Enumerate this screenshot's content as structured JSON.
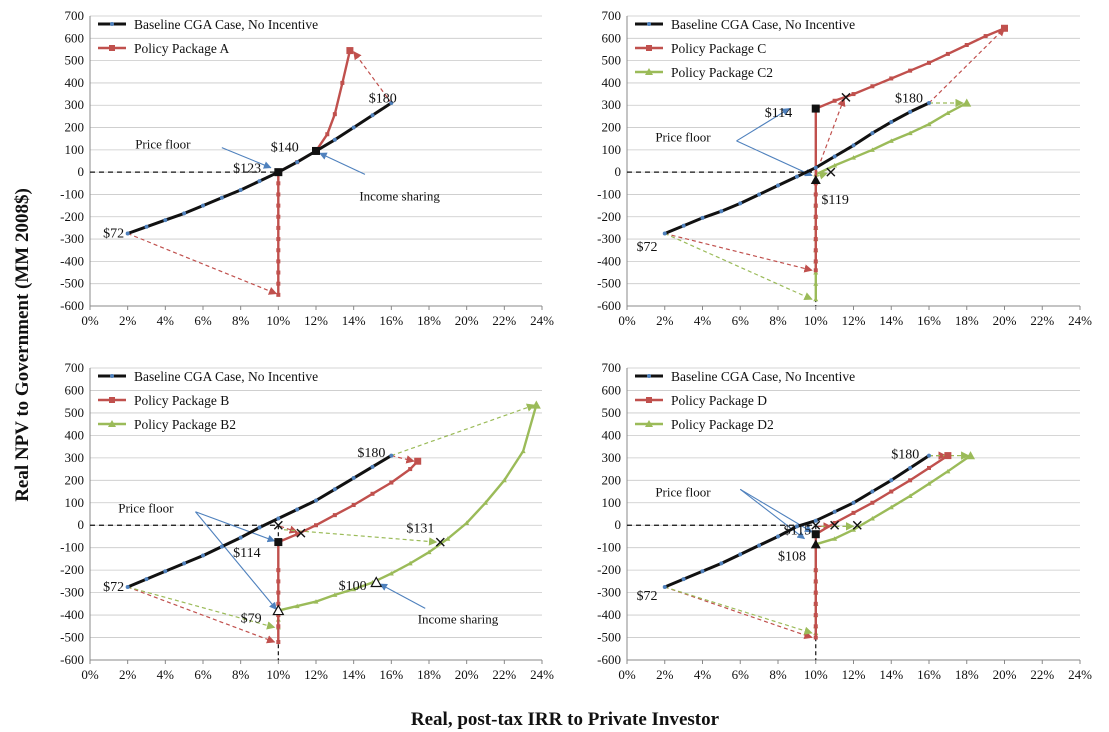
{
  "figure": {
    "ylabel": "Real NPV to Government (MM 2008$)",
    "xlabel": "Real, post-tax IRR to Private Investor"
  },
  "colors": {
    "baseline": "#111111",
    "baseline_dot": "#4f81bd",
    "policy": "#c0504d",
    "policy2": "#9bbb59",
    "arrow_blue": "#4f81bd"
  },
  "chart_data": [
    {
      "type": "line",
      "xlim": [
        0,
        24
      ],
      "ylim": [
        -600,
        700
      ],
      "xstep": 2,
      "ystep": 100,
      "xticks": [
        "0%",
        "2%",
        "4%",
        "6%",
        "8%",
        "10%",
        "12%",
        "14%",
        "16%",
        "18%",
        "20%",
        "22%",
        "24%"
      ],
      "yticks": [
        "-600",
        "-500",
        "-400",
        "-300",
        "-200",
        "-100",
        "0",
        "100",
        "200",
        "300",
        "400",
        "500",
        "600",
        "700"
      ],
      "series": [
        {
          "name": "Baseline CGA Case, No Incentive",
          "kind": "baseline",
          "x": [
            2,
            3,
            4,
            5,
            6,
            7,
            8,
            9,
            10,
            11,
            12,
            13,
            14,
            15,
            16
          ],
          "y": [
            -275,
            -245,
            -215,
            -185,
            -150,
            -115,
            -80,
            -40,
            0,
            45,
            95,
            145,
            200,
            255,
            310
          ]
        },
        {
          "name": "Policy Package A",
          "kind": "policy",
          "x": [
            10,
            10,
            10,
            10,
            10,
            10,
            10,
            10,
            10,
            10,
            10,
            10,
            11,
            12,
            12.6,
            13,
            13.4,
            13.8
          ],
          "y": [
            -550,
            -500,
            -450,
            -400,
            -350,
            -300,
            -250,
            -200,
            -150,
            -100,
            -50,
            0,
            45,
            95,
            170,
            260,
            400,
            545
          ]
        }
      ],
      "points": [
        {
          "x": 10,
          "y": 0,
          "marker": "square-black"
        },
        {
          "x": 12,
          "y": 95,
          "marker": "square-black"
        }
      ],
      "labels": [
        {
          "text": "$72",
          "x": 0.7,
          "y": -270
        },
        {
          "text": "$123",
          "x": 7.6,
          "y": 20
        },
        {
          "text": "$140",
          "x": 9.6,
          "y": 115
        },
        {
          "text": "$180",
          "x": 14.8,
          "y": 335
        }
      ],
      "arrows": [
        {
          "from": [
            2,
            -275
          ],
          "to": [
            9.9,
            -545
          ],
          "kind": "policy"
        },
        {
          "from": [
            16,
            310
          ],
          "to": [
            14,
            540
          ],
          "kind": "policy"
        },
        {
          "from": [
            7,
            110
          ],
          "to": [
            9.6,
            20
          ],
          "kind": "blue"
        },
        {
          "from": [
            14.6,
            -10
          ],
          "to": [
            12.2,
            85
          ],
          "kind": "blue"
        }
      ],
      "annotations": [
        {
          "text": "Price floor",
          "x": 2.4,
          "y": 125
        },
        {
          "text": "Income sharing",
          "x": 14.3,
          "y": -110
        }
      ]
    },
    {
      "type": "line",
      "xlim": [
        0,
        24
      ],
      "ylim": [
        -600,
        700
      ],
      "xstep": 2,
      "ystep": 100,
      "xticks": [
        "0%",
        "2%",
        "4%",
        "6%",
        "8%",
        "10%",
        "12%",
        "14%",
        "16%",
        "18%",
        "20%",
        "22%",
        "24%"
      ],
      "yticks": [
        "-600",
        "-500",
        "-400",
        "-300",
        "-200",
        "-100",
        "0",
        "100",
        "200",
        "300",
        "400",
        "500",
        "600",
        "700"
      ],
      "series": [
        {
          "name": "Baseline CGA Case, No Incentive",
          "kind": "baseline",
          "x": [
            2,
            3,
            4,
            5,
            6,
            7,
            8,
            9,
            10,
            11,
            12,
            13,
            14,
            15,
            16
          ],
          "y": [
            -275,
            -240,
            -205,
            -175,
            -140,
            -100,
            -60,
            -20,
            20,
            70,
            120,
            175,
            225,
            270,
            310
          ]
        },
        {
          "name": "Policy Package C",
          "kind": "policy",
          "x": [
            10,
            10,
            10,
            10,
            10,
            10,
            10,
            10,
            10,
            10,
            11,
            12,
            13,
            14,
            15,
            16,
            17,
            18,
            19,
            20
          ],
          "y": [
            -440,
            -400,
            -350,
            -300,
            -250,
            -200,
            -150,
            -100,
            -50,
            285,
            320,
            350,
            385,
            420,
            455,
            490,
            530,
            570,
            610,
            645
          ]
        },
        {
          "name": "Policy Package C2",
          "kind": "policy2",
          "x": [
            10,
            10,
            10,
            10,
            10,
            10,
            10,
            10,
            10,
            10,
            11,
            12,
            13,
            14,
            15,
            16,
            17,
            18
          ],
          "y": [
            -570,
            -500,
            -450,
            -400,
            -350,
            -300,
            -250,
            -200,
            -150,
            -10,
            30,
            65,
            100,
            140,
            175,
            215,
            265,
            310
          ]
        }
      ],
      "points": [
        {
          "x": 10,
          "y": 285,
          "marker": "square-black"
        },
        {
          "x": 10,
          "y": -35,
          "marker": "triangle-black"
        },
        {
          "x": 11.6,
          "y": 335,
          "marker": "cross"
        },
        {
          "x": 10.8,
          "y": 0,
          "marker": "cross"
        }
      ],
      "labels": [
        {
          "text": "$72",
          "x": 0.5,
          "y": -330
        },
        {
          "text": "$114",
          "x": 7.3,
          "y": 270
        },
        {
          "text": "$119",
          "x": 10.3,
          "y": -120
        },
        {
          "text": "$180",
          "x": 14.2,
          "y": 335
        }
      ],
      "arrows": [
        {
          "from": [
            2,
            -275
          ],
          "to": [
            9.8,
            -440
          ],
          "kind": "policy"
        },
        {
          "from": [
            2,
            -275
          ],
          "to": [
            9.8,
            -570
          ],
          "kind": "policy2"
        },
        {
          "from": [
            16,
            310
          ],
          "to": [
            20,
            645
          ],
          "kind": "policy"
        },
        {
          "from": [
            16,
            310
          ],
          "to": [
            17.8,
            310
          ],
          "kind": "policy2"
        },
        {
          "from": [
            10,
            -10
          ],
          "to": [
            11.5,
            330
          ],
          "kind": "policy"
        },
        {
          "from": [
            10,
            -20
          ],
          "to": [
            10.6,
            -5
          ],
          "kind": "policy2"
        },
        {
          "from": [
            5.8,
            140
          ],
          "to": [
            8.6,
            285
          ],
          "kind": "blue"
        },
        {
          "from": [
            5.8,
            140
          ],
          "to": [
            9.8,
            -15
          ],
          "kind": "blue"
        }
      ],
      "annotations": [
        {
          "text": "Price floor",
          "x": 1.5,
          "y": 155
        }
      ]
    },
    {
      "type": "line",
      "xlim": [
        0,
        24
      ],
      "ylim": [
        -600,
        700
      ],
      "xstep": 2,
      "ystep": 100,
      "xticks": [
        "0%",
        "2%",
        "4%",
        "6%",
        "8%",
        "10%",
        "12%",
        "14%",
        "16%",
        "18%",
        "20%",
        "22%",
        "24%"
      ],
      "yticks": [
        "-600",
        "-500",
        "-400",
        "-300",
        "-200",
        "-100",
        "0",
        "100",
        "200",
        "300",
        "400",
        "500",
        "600",
        "700"
      ],
      "series": [
        {
          "name": "Baseline CGA Case, No Incentive",
          "kind": "baseline",
          "x": [
            2,
            3,
            4,
            5,
            6,
            7,
            8,
            9,
            10,
            11,
            12,
            13,
            14,
            15,
            16
          ],
          "y": [
            -275,
            -240,
            -205,
            -170,
            -135,
            -95,
            -55,
            -10,
            30,
            70,
            110,
            160,
            210,
            260,
            310
          ]
        },
        {
          "name": "Policy Package B",
          "kind": "policy",
          "x": [
            10,
            10,
            10,
            10,
            10,
            10,
            10,
            10,
            11,
            12,
            13,
            14,
            15,
            16,
            17,
            17.4
          ],
          "y": [
            -520,
            -450,
            -400,
            -350,
            -300,
            -250,
            -200,
            -75,
            -40,
            0,
            45,
            90,
            140,
            190,
            250,
            285
          ]
        },
        {
          "name": "Policy Package B2",
          "kind": "policy2",
          "x": [
            10,
            10,
            10,
            11,
            12,
            13,
            14,
            15,
            16,
            17,
            18,
            19,
            20,
            21,
            22,
            23,
            23.7
          ],
          "y": [
            -455,
            -420,
            -380,
            -360,
            -340,
            -310,
            -285,
            -255,
            -215,
            -170,
            -120,
            -60,
            10,
            100,
            200,
            330,
            535
          ]
        }
      ],
      "points": [
        {
          "x": 10,
          "y": 0,
          "marker": "cross"
        },
        {
          "x": 10,
          "y": -75,
          "marker": "square-black"
        },
        {
          "x": 11.2,
          "y": -35,
          "marker": "cross"
        },
        {
          "x": 10,
          "y": -380,
          "marker": "triangle-open"
        },
        {
          "x": 15.2,
          "y": -255,
          "marker": "triangle-open"
        },
        {
          "x": 18.6,
          "y": -75,
          "marker": "cross"
        }
      ],
      "labels": [
        {
          "text": "$72",
          "x": 0.7,
          "y": -270
        },
        {
          "text": "$114",
          "x": 7.6,
          "y": -120
        },
        {
          "text": "$79",
          "x": 8.0,
          "y": -410
        },
        {
          "text": "$100",
          "x": 13.2,
          "y": -265
        },
        {
          "text": "$131",
          "x": 16.8,
          "y": -10
        },
        {
          "text": "$180",
          "x": 14.2,
          "y": 325
        }
      ],
      "arrows": [
        {
          "from": [
            2,
            -275
          ],
          "to": [
            9.8,
            -520
          ],
          "kind": "policy"
        },
        {
          "from": [
            2,
            -275
          ],
          "to": [
            9.8,
            -455
          ],
          "kind": "policy2"
        },
        {
          "from": [
            16,
            310
          ],
          "to": [
            17.2,
            285
          ],
          "kind": "policy"
        },
        {
          "from": [
            16,
            310
          ],
          "to": [
            23.6,
            535
          ],
          "kind": "policy2"
        },
        {
          "from": [
            10.1,
            -5
          ],
          "to": [
            11,
            -30
          ],
          "kind": "policy"
        },
        {
          "from": [
            10.3,
            -20
          ],
          "to": [
            18.4,
            -75
          ],
          "kind": "policy2"
        },
        {
          "from": [
            5.6,
            60
          ],
          "to": [
            9.8,
            -70
          ],
          "kind": "blue"
        },
        {
          "from": [
            5.6,
            60
          ],
          "to": [
            9.9,
            -375
          ],
          "kind": "blue"
        },
        {
          "from": [
            17.8,
            -370
          ],
          "to": [
            15.4,
            -262
          ],
          "kind": "blue"
        }
      ],
      "annotations": [
        {
          "text": "Price floor",
          "x": 1.5,
          "y": 75
        },
        {
          "text": "Income sharing",
          "x": 17.4,
          "y": -420
        }
      ]
    },
    {
      "type": "line",
      "xlim": [
        0,
        24
      ],
      "ylim": [
        -600,
        700
      ],
      "xstep": 2,
      "ystep": 100,
      "xticks": [
        "0%",
        "2%",
        "4%",
        "6%",
        "8%",
        "10%",
        "12%",
        "14%",
        "16%",
        "18%",
        "20%",
        "22%",
        "24%"
      ],
      "yticks": [
        "-600",
        "-500",
        "-400",
        "-300",
        "-200",
        "-100",
        "0",
        "100",
        "200",
        "300",
        "400",
        "500",
        "600",
        "700"
      ],
      "series": [
        {
          "name": "Baseline CGA Case, No Incentive",
          "kind": "baseline",
          "x": [
            2,
            3,
            4,
            5,
            6,
            7,
            8,
            9,
            10,
            11,
            12,
            13,
            14,
            15,
            16
          ],
          "y": [
            -275,
            -240,
            -205,
            -170,
            -130,
            -90,
            -50,
            -5,
            20,
            60,
            100,
            150,
            200,
            255,
            310
          ]
        },
        {
          "name": "Policy Package D",
          "kind": "policy",
          "x": [
            10,
            10,
            10,
            10,
            10,
            10,
            10,
            10,
            11,
            12,
            13,
            14,
            15,
            16,
            17
          ],
          "y": [
            -500,
            -450,
            -400,
            -350,
            -300,
            -250,
            -200,
            -40,
            10,
            55,
            100,
            150,
            200,
            255,
            310
          ]
        },
        {
          "name": "Policy Package D2",
          "kind": "policy2",
          "x": [
            10,
            10,
            10,
            10,
            10,
            10,
            10,
            10,
            11,
            12,
            13,
            14,
            15,
            16,
            17,
            18.2
          ],
          "y": [
            -480,
            -450,
            -400,
            -350,
            -300,
            -250,
            -200,
            -85,
            -60,
            -20,
            30,
            80,
            130,
            185,
            240,
            310
          ]
        }
      ],
      "points": [
        {
          "x": 10,
          "y": -40,
          "marker": "square-black"
        },
        {
          "x": 10,
          "y": -85,
          "marker": "triangle-black"
        },
        {
          "x": 10,
          "y": 0,
          "marker": "cross"
        },
        {
          "x": 11,
          "y": 0,
          "marker": "cross"
        },
        {
          "x": 12.2,
          "y": 0,
          "marker": "cross"
        }
      ],
      "labels": [
        {
          "text": "$72",
          "x": 0.5,
          "y": -310
        },
        {
          "text": "$115",
          "x": 8.3,
          "y": -20
        },
        {
          "text": "$108",
          "x": 8.0,
          "y": -135
        },
        {
          "text": "$180",
          "x": 14.0,
          "y": 320
        }
      ],
      "arrows": [
        {
          "from": [
            2,
            -275
          ],
          "to": [
            9.8,
            -500
          ],
          "kind": "policy"
        },
        {
          "from": [
            2,
            -275
          ],
          "to": [
            9.8,
            -480
          ],
          "kind": "policy2"
        },
        {
          "from": [
            16,
            310
          ],
          "to": [
            16.9,
            310
          ],
          "kind": "policy"
        },
        {
          "from": [
            16,
            310
          ],
          "to": [
            18.1,
            310
          ],
          "kind": "policy2"
        },
        {
          "from": [
            10.1,
            -5
          ],
          "to": [
            10.8,
            -5
          ],
          "kind": "policy"
        },
        {
          "from": [
            10.3,
            -5
          ],
          "to": [
            12,
            -5
          ],
          "kind": "policy2"
        },
        {
          "from": [
            6.0,
            160
          ],
          "to": [
            9.8,
            -30
          ],
          "kind": "blue"
        },
        {
          "from": [
            6.0,
            160
          ],
          "to": [
            9.4,
            -60
          ],
          "kind": "blue"
        }
      ],
      "annotations": [
        {
          "text": "Price floor",
          "x": 1.5,
          "y": 145
        }
      ]
    }
  ]
}
